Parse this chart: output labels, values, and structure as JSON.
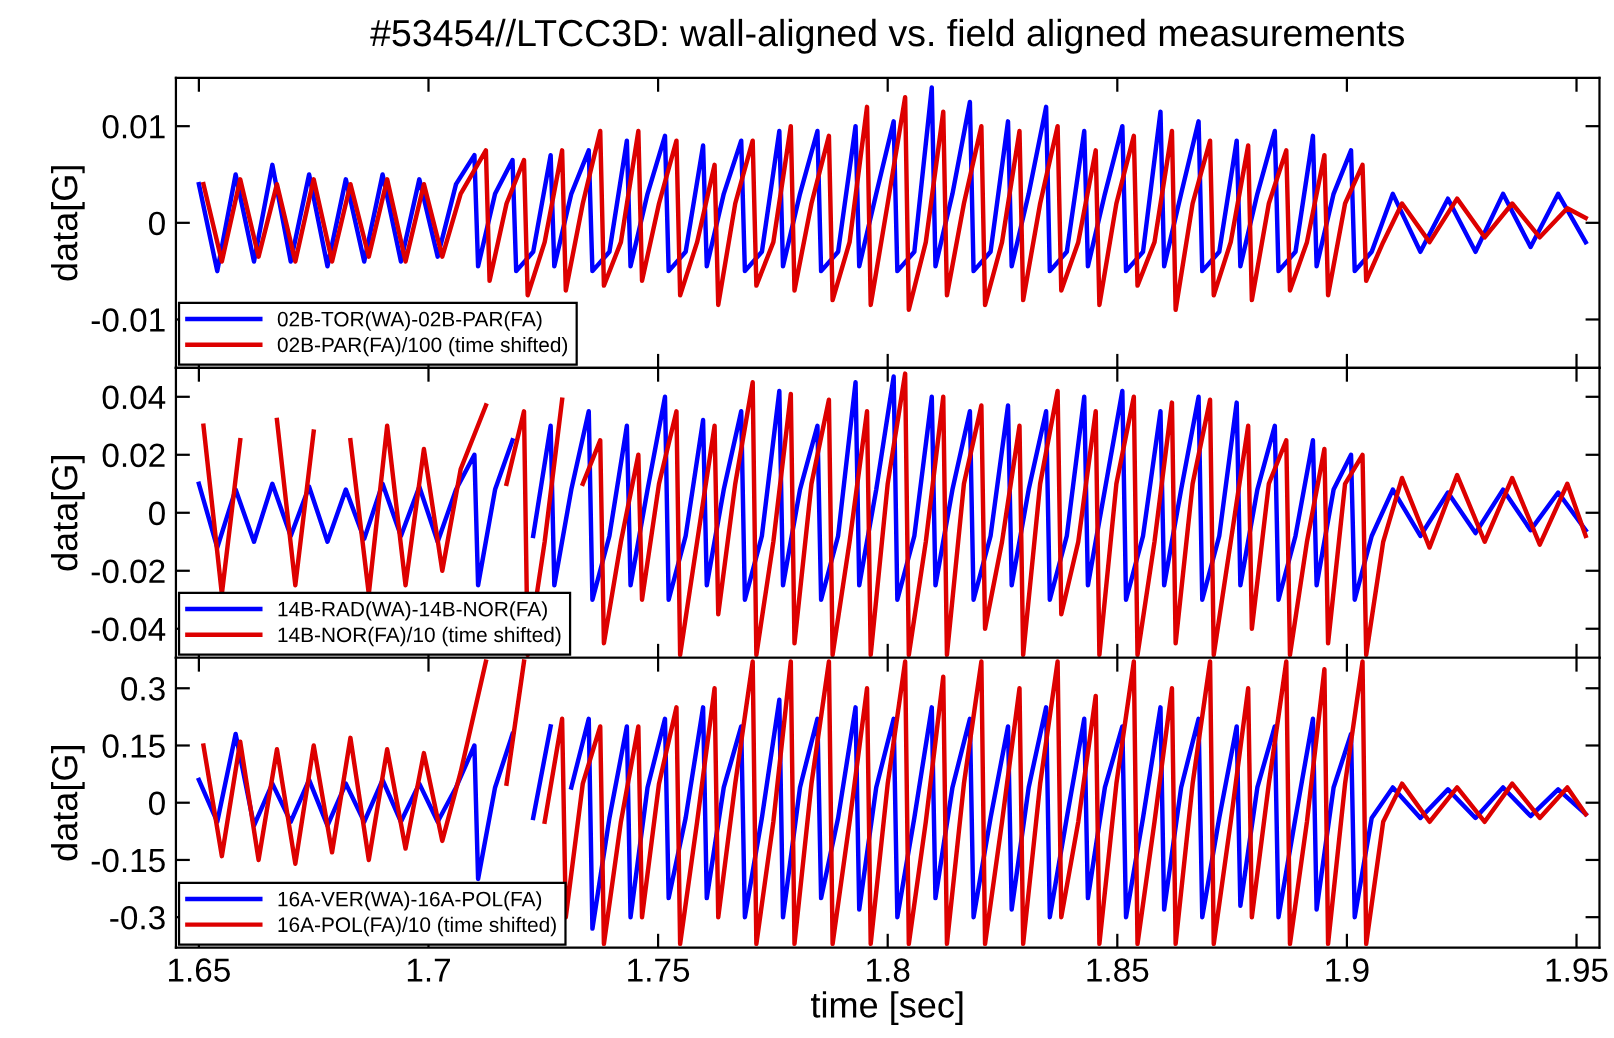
{
  "chart_data": [
    {
      "type": "line",
      "title": "#53454//LTCC3D: wall-aligned vs. field aligned measurements",
      "ylabel": "data[G]",
      "xlim": [
        1.645,
        1.955
      ],
      "xticks": [
        1.65,
        1.7,
        1.75,
        1.8,
        1.85,
        1.9,
        1.95
      ],
      "ylim": [
        -0.015,
        0.015
      ],
      "yticks": [
        -0.01,
        0,
        0.01
      ],
      "tick_labels": "y",
      "legend": "bottom left",
      "line_style": "solid",
      "x": [
        1.651,
        1.655,
        1.659,
        1.663,
        1.667,
        1.671,
        1.675,
        1.679,
        1.683,
        1.687,
        1.691,
        1.695,
        1.699,
        1.703,
        1.707,
        1.7125,
        1.7133,
        1.717,
        1.7208,
        1.7216,
        1.7253,
        1.7291,
        1.7299,
        1.7336,
        1.7374,
        1.7382,
        1.7419,
        1.7457,
        1.7465,
        1.7502,
        1.754,
        1.7548,
        1.7585,
        1.7623,
        1.7631,
        1.7668,
        1.7706,
        1.7714,
        1.7751,
        1.7789,
        1.7797,
        1.7834,
        1.7872,
        1.788,
        1.7917,
        1.7955,
        1.7963,
        1.8,
        1.8038,
        1.8046,
        1.8083,
        1.8121,
        1.8129,
        1.8166,
        1.8204,
        1.8212,
        1.8249,
        1.8287,
        1.8295,
        1.8332,
        1.837,
        1.8378,
        1.8415,
        1.8453,
        1.8461,
        1.8498,
        1.8536,
        1.8544,
        1.8581,
        1.8619,
        1.8627,
        1.8664,
        1.8702,
        1.871,
        1.8747,
        1.8785,
        1.8793,
        1.883,
        1.8868,
        1.8876,
        1.8913,
        1.8951,
        1.8959,
        1.8996,
        1.9034,
        1.9042,
        1.9079,
        1.912,
        1.918,
        1.924,
        1.93,
        1.936,
        1.942,
        1.948,
        1.952
      ],
      "series": [
        {
          "name": "02B-TOR(WA)-02B-PAR(FA)",
          "color": "#0000ff",
          "x": [
            1.65,
            1.654,
            1.658,
            1.662,
            1.666,
            1.67,
            1.674,
            1.678,
            1.682,
            1.686,
            1.69,
            1.694,
            1.698,
            1.702,
            1.706,
            1.71,
            1.7108,
            1.7145,
            1.7183,
            1.7191,
            1.7228,
            1.7266,
            1.7274,
            1.7311,
            1.7349,
            1.7357,
            1.7394,
            1.7432,
            1.744,
            1.7477,
            1.7515,
            1.7523,
            1.756,
            1.7598,
            1.7606,
            1.7643,
            1.7681,
            1.7689,
            1.7726,
            1.7764,
            1.7772,
            1.7809,
            1.7847,
            1.7855,
            1.7892,
            1.793,
            1.7938,
            1.7975,
            1.8013,
            1.8021,
            1.8058,
            1.8096,
            1.8104,
            1.8141,
            1.8179,
            1.8187,
            1.8224,
            1.8262,
            1.827,
            1.8307,
            1.8345,
            1.8353,
            1.839,
            1.8428,
            1.8436,
            1.8473,
            1.8511,
            1.8519,
            1.8556,
            1.8594,
            1.8602,
            1.8639,
            1.8677,
            1.8685,
            1.8722,
            1.876,
            1.8768,
            1.8805,
            1.8843,
            1.8851,
            1.8888,
            1.8926,
            1.8934,
            1.8971,
            1.9009,
            1.9017,
            1.9054,
            1.91,
            1.916,
            1.922,
            1.928,
            1.934,
            1.94,
            1.946,
            1.952
          ],
          "values": [
            0.004,
            -0.005,
            0.005,
            -0.004,
            0.006,
            -0.004,
            0.005,
            -0.0045,
            0.0045,
            -0.004,
            0.005,
            -0.004,
            0.0045,
            -0.0035,
            0.004,
            0.007,
            -0.0045,
            0.003,
            0.0065,
            -0.005,
            -0.003,
            0.007,
            -0.0045,
            0.003,
            0.0075,
            -0.005,
            -0.003,
            0.0085,
            -0.0045,
            0.003,
            0.009,
            -0.005,
            -0.003,
            0.008,
            -0.0045,
            0.003,
            0.0085,
            -0.005,
            -0.003,
            0.0095,
            -0.0045,
            0.003,
            0.0095,
            -0.005,
            -0.003,
            0.01,
            -0.0045,
            0.003,
            0.0105,
            -0.005,
            -0.003,
            0.014,
            -0.0045,
            0.003,
            0.0125,
            -0.005,
            -0.003,
            0.0105,
            -0.0045,
            0.003,
            0.012,
            -0.005,
            -0.003,
            0.0095,
            -0.0045,
            0.003,
            0.01,
            -0.005,
            -0.003,
            0.0115,
            -0.0045,
            0.003,
            0.0105,
            -0.005,
            -0.003,
            0.0085,
            -0.0045,
            0.003,
            0.0095,
            -0.005,
            -0.003,
            0.009,
            -0.0045,
            0.003,
            0.0075,
            -0.005,
            -0.003,
            0.003,
            -0.003,
            0.0025,
            -0.003,
            0.003,
            -0.0025,
            0.003,
            -0.002
          ]
        },
        {
          "name": "02B-PAR(FA)/100 (time shifted)",
          "color": "#dd0000",
          "values": [
            0.004,
            -0.004,
            0.0045,
            -0.0035,
            0.004,
            -0.004,
            0.0045,
            -0.004,
            0.004,
            -0.0035,
            0.0045,
            -0.004,
            0.004,
            -0.0035,
            0.003,
            0.0075,
            -0.006,
            0.002,
            0.0065,
            -0.0075,
            -0.002,
            0.0075,
            -0.007,
            0.002,
            0.0095,
            -0.0065,
            -0.002,
            0.0095,
            -0.006,
            0.002,
            0.0085,
            -0.0075,
            -0.002,
            0.006,
            -0.0085,
            0.002,
            0.0085,
            -0.0065,
            -0.002,
            0.01,
            -0.007,
            0.002,
            0.009,
            -0.008,
            -0.002,
            0.012,
            -0.0085,
            0.002,
            0.013,
            -0.009,
            -0.002,
            0.0115,
            -0.0075,
            0.002,
            0.01,
            -0.0085,
            -0.002,
            0.0095,
            -0.008,
            0.002,
            0.01,
            -0.007,
            -0.002,
            0.0075,
            -0.0085,
            0.002,
            0.009,
            -0.0065,
            -0.002,
            0.0095,
            -0.009,
            0.002,
            0.0085,
            -0.0075,
            -0.002,
            0.008,
            -0.008,
            0.002,
            0.0075,
            -0.007,
            -0.002,
            0.007,
            -0.0075,
            0.002,
            0.006,
            -0.006,
            -0.002,
            0.002,
            -0.002,
            0.0025,
            -0.0015,
            0.002,
            -0.0015,
            0.0015,
            0.0005
          ]
        }
      ]
    },
    {
      "type": "line",
      "ylabel": "data[G]",
      "xlim": [
        1.645,
        1.955
      ],
      "xticks": [
        1.65,
        1.7,
        1.75,
        1.8,
        1.85,
        1.9,
        1.95
      ],
      "ylim": [
        -0.05,
        0.05
      ],
      "yticks": [
        -0.04,
        -0.02,
        0,
        0.02,
        0.04
      ],
      "tick_labels": "y",
      "legend": "bottom left",
      "line_style": "solid",
      "x": [
        1.651,
        1.655,
        1.659,
        1.663,
        1.667,
        1.671,
        1.675,
        1.679,
        1.683,
        1.687,
        1.691,
        1.695,
        1.699,
        1.703,
        1.707,
        1.7125,
        1.7133,
        1.717,
        1.7208,
        1.7216,
        1.7253,
        1.7291,
        1.7299,
        1.7336,
        1.7374,
        1.7382,
        1.7419,
        1.7457,
        1.7465,
        1.7502,
        1.754,
        1.7548,
        1.7585,
        1.7623,
        1.7631,
        1.7668,
        1.7706,
        1.7714,
        1.7751,
        1.7789,
        1.7797,
        1.7834,
        1.7872,
        1.788,
        1.7917,
        1.7955,
        1.7963,
        1.8,
        1.8038,
        1.8046,
        1.8083,
        1.8121,
        1.8129,
        1.8166,
        1.8204,
        1.8212,
        1.8249,
        1.8287,
        1.8295,
        1.8332,
        1.837,
        1.8378,
        1.8415,
        1.8453,
        1.8461,
        1.8498,
        1.8536,
        1.8544,
        1.8581,
        1.8619,
        1.8627,
        1.8664,
        1.8702,
        1.871,
        1.8747,
        1.8785,
        1.8793,
        1.883,
        1.8868,
        1.8876,
        1.8913,
        1.8951,
        1.8959,
        1.8996,
        1.9034,
        1.9042,
        1.9079,
        1.912,
        1.918,
        1.924,
        1.93,
        1.936,
        1.942,
        1.948,
        1.952
      ],
      "series": [
        {
          "name": "14B-RAD(WA)-14B-NOR(FA)",
          "color": "#0000ff",
          "x": [
            1.65,
            1.654,
            1.658,
            1.662,
            1.666,
            1.67,
            1.674,
            1.678,
            1.682,
            1.686,
            1.69,
            1.694,
            1.698,
            1.702,
            1.706,
            1.71,
            1.7108,
            1.7145,
            1.7183,
            1.7191,
            1.7228,
            1.7266,
            1.7274,
            1.7311,
            1.7349,
            1.7357,
            1.7394,
            1.7432,
            1.744,
            1.7477,
            1.7515,
            1.7523,
            1.756,
            1.7598,
            1.7606,
            1.7643,
            1.7681,
            1.7689,
            1.7726,
            1.7764,
            1.7772,
            1.7809,
            1.7847,
            1.7855,
            1.7892,
            1.793,
            1.7938,
            1.7975,
            1.8013,
            1.8021,
            1.8058,
            1.8096,
            1.8104,
            1.8141,
            1.8179,
            1.8187,
            1.8224,
            1.8262,
            1.827,
            1.8307,
            1.8345,
            1.8353,
            1.839,
            1.8428,
            1.8436,
            1.8473,
            1.8511,
            1.8519,
            1.8556,
            1.8594,
            1.8602,
            1.8639,
            1.8677,
            1.8685,
            1.8722,
            1.876,
            1.8768,
            1.8805,
            1.8843,
            1.8851,
            1.8888,
            1.8926,
            1.8934,
            1.8971,
            1.9009,
            1.9017,
            1.9054,
            1.91,
            1.916,
            1.922,
            1.928,
            1.934,
            1.94,
            1.946,
            1.952
          ],
          "values": [
            0.01,
            -0.012,
            0.008,
            -0.01,
            0.01,
            -0.008,
            0.009,
            -0.01,
            0.008,
            -0.009,
            0.01,
            -0.008,
            0.009,
            -0.01,
            0.008,
            0.02,
            -0.025,
            0.008,
            0.025,
            null,
            -0.008,
            0.03,
            -0.025,
            0.008,
            0.035,
            -0.03,
            -0.008,
            0.03,
            -0.025,
            0.008,
            0.04,
            -0.03,
            -0.008,
            0.032,
            -0.025,
            0.008,
            0.035,
            -0.03,
            -0.008,
            0.042,
            -0.025,
            0.008,
            0.03,
            -0.03,
            -0.008,
            0.045,
            -0.025,
            0.008,
            0.047,
            -0.03,
            -0.008,
            0.04,
            -0.025,
            0.008,
            0.035,
            -0.03,
            -0.008,
            0.037,
            -0.025,
            0.008,
            0.035,
            -0.03,
            -0.008,
            0.04,
            -0.025,
            0.008,
            0.042,
            -0.03,
            -0.008,
            0.035,
            -0.025,
            0.008,
            0.04,
            -0.03,
            -0.008,
            0.038,
            -0.025,
            0.008,
            0.03,
            -0.03,
            -0.008,
            0.025,
            -0.025,
            0.008,
            0.02,
            -0.03,
            -0.008,
            0.008,
            -0.008,
            0.007,
            -0.007,
            0.008,
            -0.006,
            0.007,
            -0.006
          ]
        },
        {
          "name": "14B-NOR(FA)/10 (time shifted)",
          "color": "#dd0000",
          "values": [
            0.03,
            -0.028,
            0.025,
            null,
            0.032,
            -0.025,
            0.028,
            null,
            0.025,
            -0.028,
            0.03,
            -0.025,
            0.022,
            -0.02,
            0.015,
            0.037,
            null,
            0.01,
            0.035,
            -0.049,
            -0.01,
            0.039,
            null,
            0.01,
            0.025,
            -0.045,
            -0.01,
            0.02,
            -0.03,
            0.01,
            0.035,
            -0.049,
            -0.01,
            0.03,
            -0.035,
            0.01,
            0.045,
            -0.049,
            -0.01,
            0.041,
            -0.045,
            0.01,
            0.039,
            -0.049,
            -0.01,
            0.035,
            -0.049,
            0.01,
            0.048,
            -0.049,
            -0.01,
            0.04,
            -0.049,
            0.01,
            0.037,
            -0.04,
            -0.01,
            0.03,
            -0.049,
            0.01,
            0.042,
            -0.035,
            -0.01,
            0.035,
            -0.049,
            0.01,
            0.04,
            -0.049,
            -0.01,
            0.038,
            -0.045,
            0.01,
            0.039,
            -0.049,
            -0.01,
            0.03,
            -0.04,
            0.01,
            0.025,
            -0.049,
            -0.01,
            0.022,
            -0.045,
            0.01,
            0.02,
            -0.049,
            -0.01,
            0.012,
            -0.012,
            0.013,
            -0.01,
            0.012,
            -0.011,
            0.01,
            -0.008
          ]
        }
      ]
    },
    {
      "type": "line",
      "ylabel": "data[G]",
      "xlabel": "time [sec]",
      "xlim": [
        1.645,
        1.955
      ],
      "xticks": [
        1.65,
        1.7,
        1.75,
        1.8,
        1.85,
        1.9,
        1.95
      ],
      "ylim": [
        -0.38,
        0.38
      ],
      "yticks": [
        -0.3,
        -0.15,
        0,
        0.15,
        0.3
      ],
      "legend": "bottom left",
      "line_style": "solid",
      "x": [
        1.651,
        1.655,
        1.659,
        1.663,
        1.667,
        1.671,
        1.675,
        1.679,
        1.683,
        1.687,
        1.691,
        1.695,
        1.699,
        1.703,
        1.707,
        1.7125,
        1.7133,
        1.717,
        1.7208,
        1.7216,
        1.7253,
        1.7291,
        1.7299,
        1.7336,
        1.7374,
        1.7382,
        1.7419,
        1.7457,
        1.7465,
        1.7502,
        1.754,
        1.7548,
        1.7585,
        1.7623,
        1.7631,
        1.7668,
        1.7706,
        1.7714,
        1.7751,
        1.7789,
        1.7797,
        1.7834,
        1.7872,
        1.788,
        1.7917,
        1.7955,
        1.7963,
        1.8,
        1.8038,
        1.8046,
        1.8083,
        1.8121,
        1.8129,
        1.8166,
        1.8204,
        1.8212,
        1.8249,
        1.8287,
        1.8295,
        1.8332,
        1.837,
        1.8378,
        1.8415,
        1.8453,
        1.8461,
        1.8498,
        1.8536,
        1.8544,
        1.8581,
        1.8619,
        1.8627,
        1.8664,
        1.8702,
        1.871,
        1.8747,
        1.8785,
        1.8793,
        1.883,
        1.8868,
        1.8876,
        1.8913,
        1.8951,
        1.8959,
        1.8996,
        1.9034,
        1.9042,
        1.9079,
        1.912,
        1.918,
        1.924,
        1.93,
        1.936,
        1.942,
        1.948,
        1.952
      ],
      "series": [
        {
          "name": "16A-VER(WA)-16A-POL(FA)",
          "color": "#0000ff",
          "x": [
            1.65,
            1.654,
            1.658,
            1.662,
            1.666,
            1.67,
            1.674,
            1.678,
            1.682,
            1.686,
            1.69,
            1.694,
            1.698,
            1.702,
            1.706,
            1.71,
            1.7108,
            1.7145,
            1.7183,
            1.7191,
            1.7228,
            1.7266,
            1.7274,
            1.7311,
            1.7349,
            1.7357,
            1.7394,
            1.7432,
            1.744,
            1.7477,
            1.7515,
            1.7523,
            1.756,
            1.7598,
            1.7606,
            1.7643,
            1.7681,
            1.7689,
            1.7726,
            1.7764,
            1.7772,
            1.7809,
            1.7847,
            1.7855,
            1.7892,
            1.793,
            1.7938,
            1.7975,
            1.8013,
            1.8021,
            1.8058,
            1.8096,
            1.8104,
            1.8141,
            1.8179,
            1.8187,
            1.8224,
            1.8262,
            1.827,
            1.8307,
            1.8345,
            1.8353,
            1.839,
            1.8428,
            1.8436,
            1.8473,
            1.8511,
            1.8519,
            1.8556,
            1.8594,
            1.8602,
            1.8639,
            1.8677,
            1.8685,
            1.8722,
            1.876,
            1.8768,
            1.8805,
            1.8843,
            1.8851,
            1.8888,
            1.8926,
            1.8934,
            1.8971,
            1.9009,
            1.9017,
            1.9054,
            1.91,
            1.916,
            1.922,
            1.928,
            1.934,
            1.94,
            1.946,
            1.952
          ],
          "values": [
            0.06,
            -0.05,
            0.18,
            -0.06,
            0.05,
            -0.05,
            0.06,
            -0.06,
            0.05,
            -0.05,
            0.06,
            -0.05,
            0.05,
            -0.05,
            0.04,
            0.15,
            -0.2,
            0.04,
            0.18,
            null,
            -0.04,
            0.2,
            null,
            0.04,
            0.22,
            -0.33,
            -0.04,
            0.2,
            -0.3,
            0.04,
            0.22,
            -0.25,
            -0.04,
            0.25,
            -0.25,
            0.04,
            0.2,
            -0.3,
            -0.04,
            0.27,
            -0.3,
            0.04,
            0.22,
            -0.25,
            -0.04,
            0.25,
            -0.28,
            0.04,
            0.22,
            -0.3,
            -0.04,
            0.25,
            -0.25,
            0.04,
            0.22,
            -0.3,
            -0.04,
            0.2,
            -0.28,
            0.04,
            0.25,
            -0.3,
            -0.04,
            0.22,
            -0.25,
            0.04,
            0.2,
            -0.3,
            -0.04,
            0.25,
            -0.28,
            0.04,
            0.22,
            -0.3,
            -0.04,
            0.2,
            -0.27,
            0.04,
            0.2,
            -0.3,
            -0.04,
            0.22,
            -0.28,
            0.04,
            0.18,
            -0.3,
            -0.04,
            0.04,
            -0.04,
            0.035,
            -0.04,
            0.04,
            -0.035,
            0.035,
            -0.03
          ]
        },
        {
          "name": "16A-POL(FA)/10 (time shifted)",
          "color": "#dd0000",
          "values": [
            0.15,
            -0.14,
            0.16,
            -0.15,
            0.14,
            -0.16,
            0.15,
            -0.13,
            0.17,
            -0.15,
            0.14,
            -0.12,
            0.13,
            -0.1,
            0.08,
            0.37,
            null,
            0.05,
            0.37,
            null,
            -0.05,
            0.22,
            -0.3,
            0.05,
            0.2,
            -0.37,
            -0.05,
            0.2,
            -0.3,
            0.05,
            0.25,
            -0.37,
            -0.05,
            0.3,
            -0.3,
            0.05,
            0.37,
            -0.37,
            -0.05,
            0.37,
            -0.37,
            0.05,
            0.37,
            -0.37,
            -0.05,
            0.3,
            -0.37,
            0.05,
            0.37,
            -0.37,
            -0.05,
            0.33,
            -0.37,
            0.05,
            0.37,
            -0.37,
            -0.05,
            0.3,
            -0.37,
            0.05,
            0.37,
            -0.3,
            -0.05,
            0.28,
            -0.37,
            0.05,
            0.37,
            -0.37,
            -0.05,
            0.3,
            -0.37,
            0.05,
            0.37,
            -0.37,
            -0.05,
            0.3,
            -0.3,
            0.05,
            0.37,
            -0.37,
            -0.05,
            0.35,
            -0.37,
            0.05,
            0.37,
            -0.37,
            -0.05,
            0.05,
            -0.05,
            0.04,
            -0.05,
            0.05,
            -0.04,
            0.04,
            -0.03
          ]
        }
      ]
    }
  ]
}
